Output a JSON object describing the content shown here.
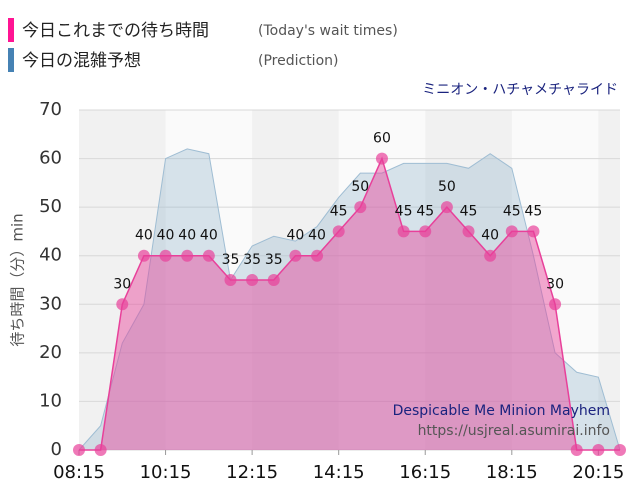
{
  "chart_data": {
    "type": "area",
    "legend": [
      {
        "label": "今日これまでの待ち時間",
        "note": "(Today's wait times)",
        "color": "#ff1493"
      },
      {
        "label": "今日の混雑予想",
        "note": "(Prediction)",
        "color": "#4682b4"
      }
    ],
    "subtitle": "ミニオン・ハチャメチャライド",
    "y_label": "待ち時間（分）min",
    "annotations": [
      "Despicable Me Minion Mayhem",
      "https://usjreal.asumirai.info"
    ],
    "categories": [
      "08:15",
      null,
      null,
      null,
      "10:15",
      null,
      null,
      null,
      "12:15",
      null,
      null,
      null,
      "14:15",
      null,
      null,
      null,
      "16:15",
      null,
      null,
      null,
      "18:15",
      null,
      null,
      null,
      "20:15",
      null
    ],
    "series": [
      {
        "name": "今日の混雑予想",
        "color": "#9fbdd3",
        "values": [
          0,
          5,
          22,
          30,
          60,
          62,
          61,
          35,
          42,
          44,
          43,
          46,
          52,
          57,
          57,
          59,
          59,
          59,
          58,
          61,
          58,
          40,
          20,
          16,
          15,
          0
        ]
      },
      {
        "name": "今日これまでの待ち時間",
        "color": "#e8409a",
        "values": [
          0,
          0,
          30,
          40,
          40,
          40,
          40,
          35,
          35,
          35,
          40,
          40,
          45,
          50,
          60,
          45,
          45,
          50,
          45,
          40,
          45,
          45,
          30,
          0,
          0,
          0
        ]
      }
    ],
    "ylim": [
      0,
      70
    ],
    "yticks": [
      0,
      10,
      20,
      30,
      40,
      50,
      60,
      70
    ],
    "grid": true
  }
}
